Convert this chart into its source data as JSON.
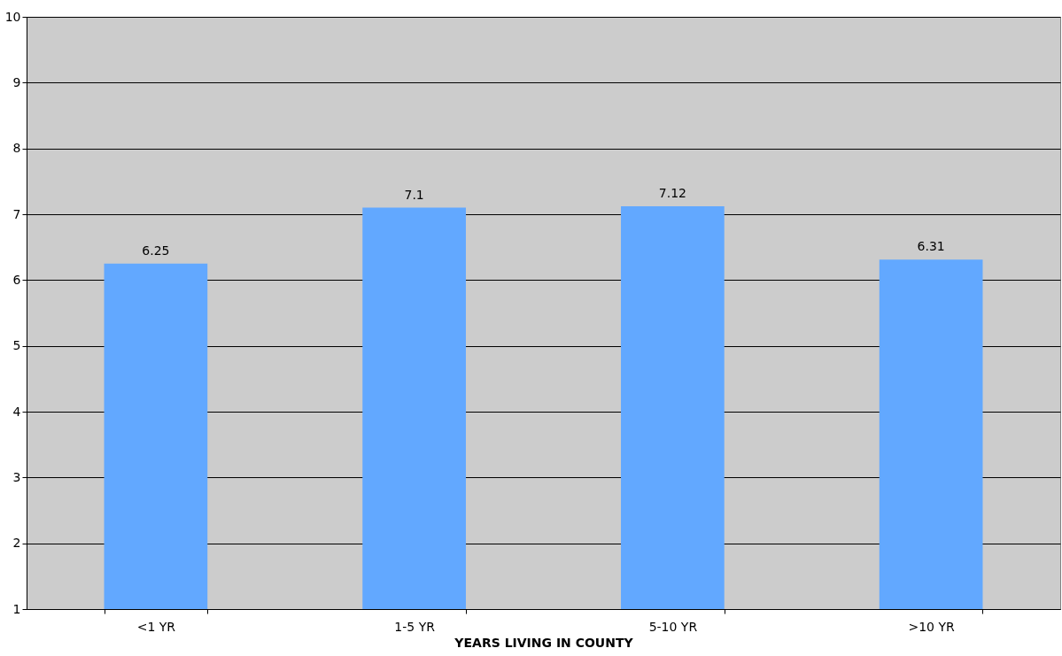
{
  "chart_data": {
    "type": "bar",
    "xlabel": "YEARS LIVING IN COUNTY",
    "categories": [
      "<1 YR",
      "1-5 YR",
      "5-10 YR",
      ">10 YR"
    ],
    "values": [
      6.25,
      7.1,
      7.12,
      6.31
    ],
    "color": "#62a8ff",
    "ylim": [
      1,
      10
    ],
    "yticks": [
      1,
      2,
      3,
      4,
      5,
      6,
      7,
      8,
      9,
      10
    ],
    "grid": "y",
    "data_labels": true
  }
}
